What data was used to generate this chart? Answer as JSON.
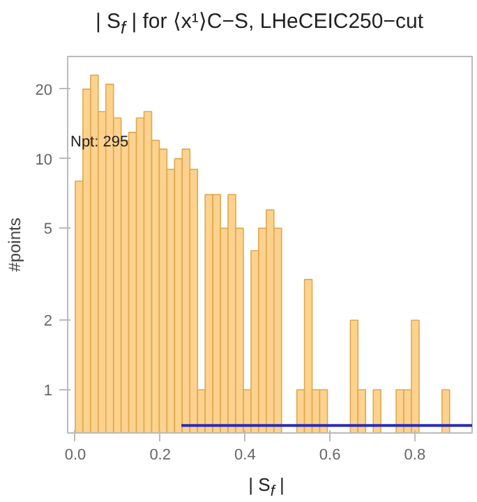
{
  "chart_data": {
    "type": "histogram",
    "title": "| S$_{f}$ | for ⟨x¹⟩C−S, LHeCEIC250−cut",
    "xlabel": "| S$_{f}$ |",
    "ylabel": "#points",
    "annotations": [
      "Npt: 295"
    ],
    "bins": [
      0,
      0.018,
      0.036,
      0.054,
      0.072,
      0.09,
      0.108,
      0.126,
      0.144,
      0.162,
      0.18,
      0.198,
      0.216,
      0.234,
      0.252,
      0.27,
      0.288,
      0.306,
      0.324,
      0.342,
      0.36,
      0.378,
      0.396,
      0.414,
      0.432,
      0.45,
      0.468,
      0.486,
      0.504,
      0.522,
      0.54,
      0.558,
      0.576,
      0.594,
      0.612,
      0.63,
      0.648,
      0.666,
      0.684,
      0.702,
      0.72,
      0.738,
      0.756,
      0.774,
      0.792,
      0.81,
      0.828,
      0.846,
      0.864,
      0.882
    ],
    "values": [
      8,
      20,
      23,
      16,
      21,
      15,
      12,
      13,
      15,
      16,
      12,
      11,
      9,
      10,
      11,
      9,
      1,
      7,
      7,
      5,
      7,
      5,
      1,
      4,
      5,
      6,
      5,
      null,
      null,
      1,
      3,
      1,
      1,
      null,
      null,
      null,
      2,
      1,
      null,
      1,
      null,
      null,
      1,
      1,
      2,
      null,
      null,
      null,
      1
    ],
    "color": "#fcd088",
    "series": [
      {
        "type": "line",
        "x": [
          0.25,
          0.935
        ],
        "values": [
          0.7,
          0.7
        ],
        "color": "#2b2bb8"
      }
    ],
    "log": "y",
    "xlim": [
      -0.018,
      0.935
    ],
    "ylim": [
      0.65,
      27.7
    ],
    "xticks": [
      {
        "value": 0,
        "label": "0.0"
      },
      0.2,
      0.4,
      0.6,
      0.8
    ],
    "yticks": [
      1,
      2,
      5,
      10,
      20
    ],
    "grid": false
  }
}
